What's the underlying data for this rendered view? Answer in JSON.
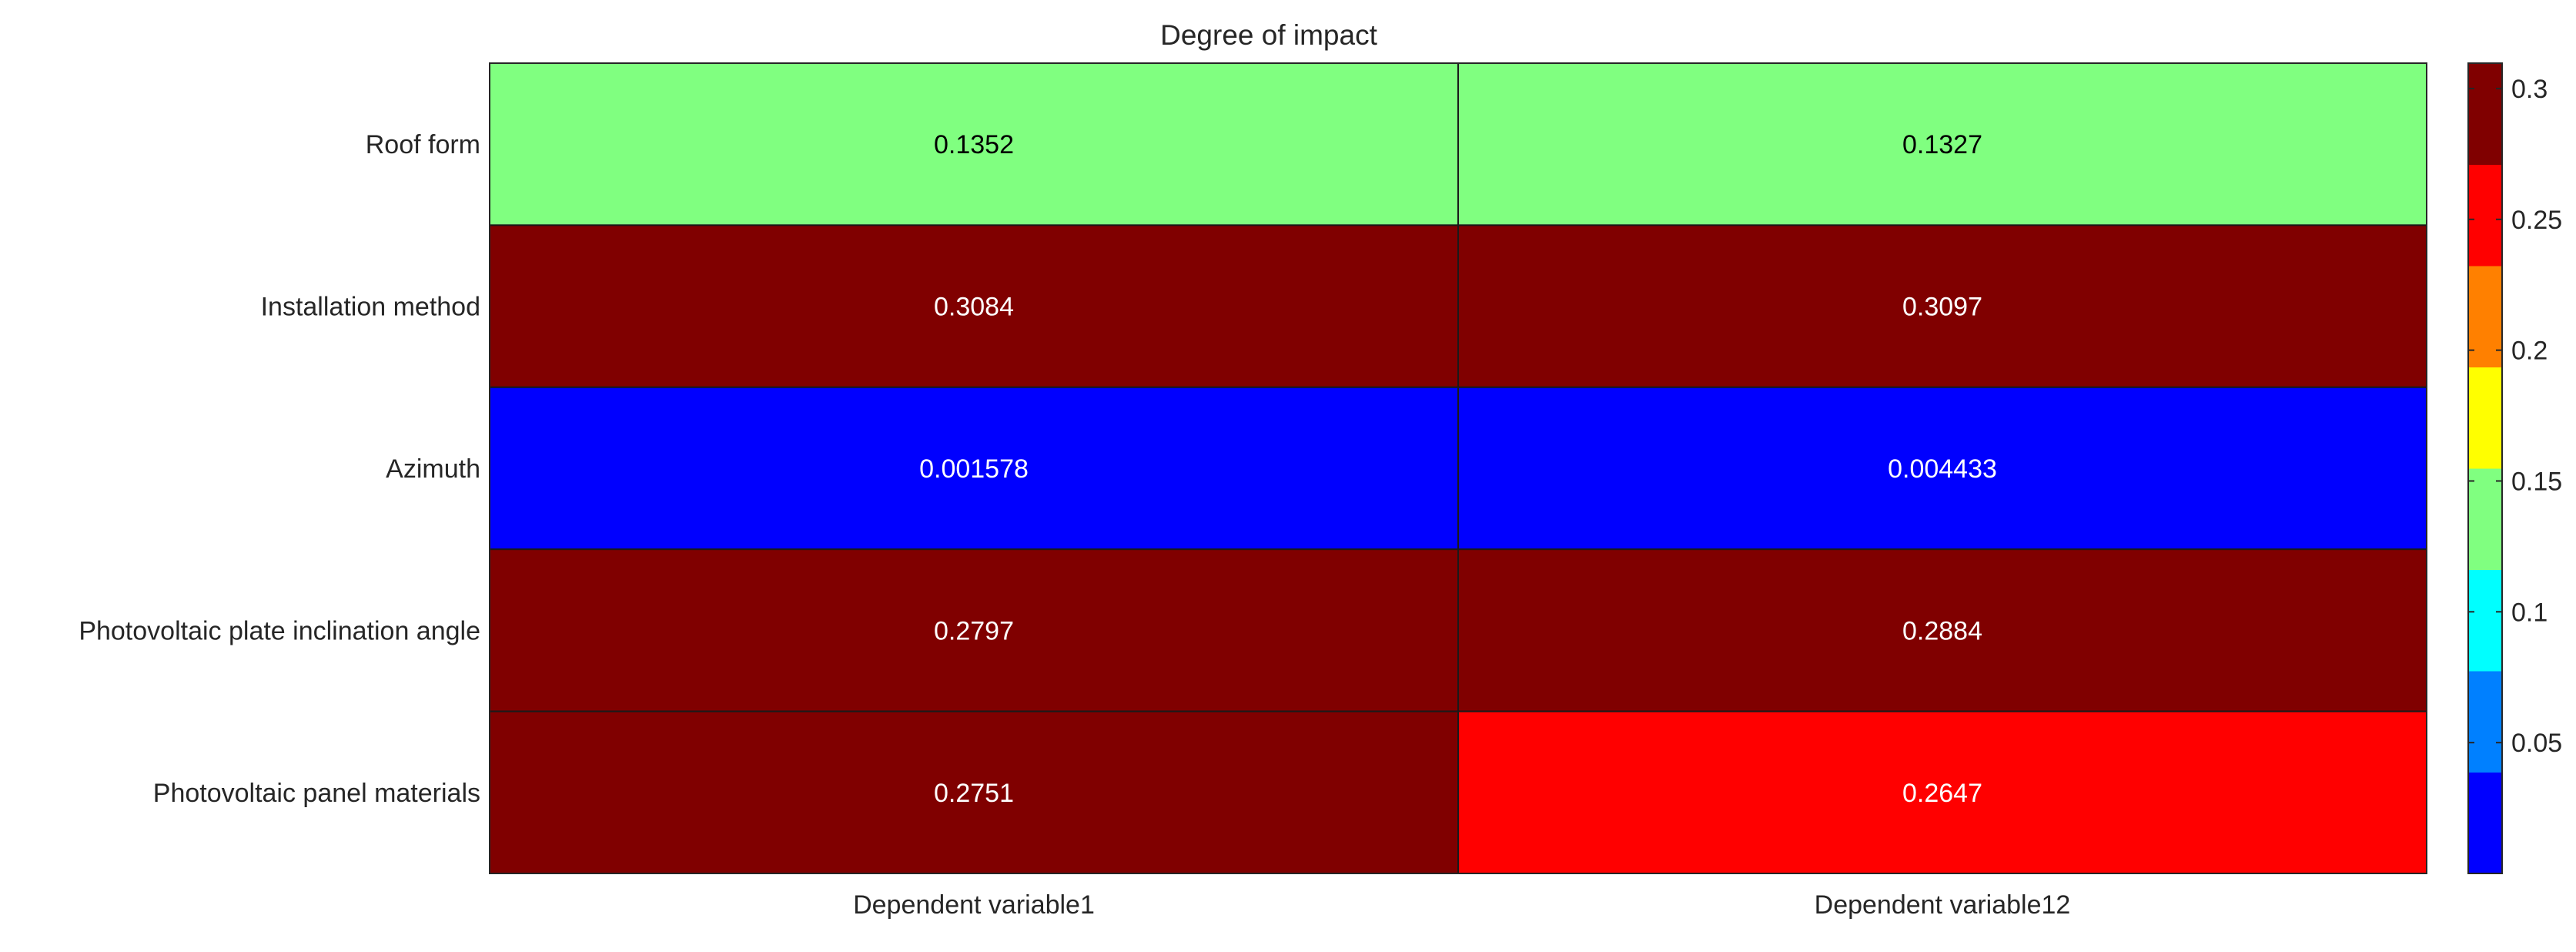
{
  "chart_data": {
    "type": "heatmap",
    "title": "Degree of impact",
    "rows": [
      "Roof form",
      "Installation method",
      "Azimuth",
      "Photovoltaic plate inclination angle",
      "Photovoltaic panel materials"
    ],
    "columns": [
      "Dependent variable1",
      "Dependent variable12"
    ],
    "values": [
      [
        0.1352,
        0.1327
      ],
      [
        0.3084,
        0.3097
      ],
      [
        0.001578,
        0.004433
      ],
      [
        0.2797,
        0.2884
      ],
      [
        0.2751,
        0.2647
      ]
    ],
    "value_labels": [
      [
        "0.1352",
        "0.1327"
      ],
      [
        "0.3084",
        "0.3097"
      ],
      [
        "0.001578",
        "0.004433"
      ],
      [
        "0.2797",
        "0.2884"
      ],
      [
        "0.2751",
        "0.2647"
      ]
    ],
    "colorbar": {
      "range": [
        0,
        0.3097
      ],
      "ticks": [
        0.05,
        0.1,
        0.15,
        0.2,
        0.25,
        0.3
      ],
      "tick_labels": [
        "0.05",
        "0.1",
        "0.15",
        "0.2",
        "0.25",
        "0.3"
      ],
      "colors": [
        "#0000ff",
        "#0080ff",
        "#00ffff",
        "#80ff80",
        "#ffff00",
        "#ff8000",
        "#ff0000",
        "#800000"
      ]
    },
    "grid": false
  }
}
